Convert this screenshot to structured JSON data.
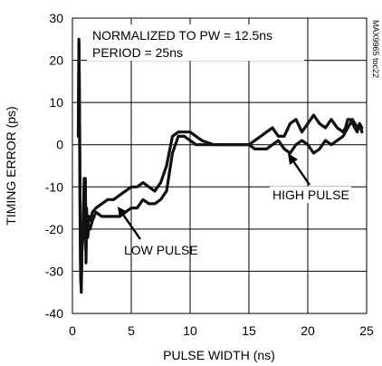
{
  "chart_data": {
    "type": "line",
    "xlabel": "PULSE WIDTH (ns)",
    "ylabel": "TIMING ERROR (ps)",
    "xlim": [
      0,
      25
    ],
    "ylim": [
      -40,
      30
    ],
    "xticks": [
      0,
      5,
      10,
      15,
      20,
      25
    ],
    "yticks": [
      -40,
      -30,
      -20,
      -10,
      0,
      10,
      20,
      30
    ],
    "grid": true,
    "side_label": "MAX9965 toc22",
    "annotations": [
      {
        "text": "NORMALIZED TO PW = 12.5ns"
      },
      {
        "text": "PERIOD = 25ns"
      },
      {
        "text": "HIGH PULSE"
      },
      {
        "text": "LOW PULSE"
      }
    ],
    "series": [
      {
        "name": "HIGH PULSE",
        "x": [
          0.5,
          0.55,
          0.6,
          0.65,
          0.7,
          0.75,
          0.8,
          0.9,
          1.0,
          1.05,
          1.1,
          1.15,
          1.2,
          1.3,
          1.4,
          1.5,
          1.6,
          1.7,
          2.0,
          2.5,
          3.0,
          3.5,
          4.0,
          4.5,
          5.0,
          5.5,
          6.0,
          6.5,
          7.0,
          7.5,
          8.0,
          8.5,
          9.0,
          9.5,
          10.0,
          10.5,
          11.0,
          12.0,
          13.0,
          14.0,
          15.0,
          15.5,
          16.0,
          16.5,
          17.0,
          17.5,
          18.0,
          18.5,
          19.0,
          19.5,
          20.0,
          20.5,
          21.0,
          21.5,
          22.0,
          22.5,
          23.0,
          23.2,
          23.4,
          23.6,
          23.8,
          24.0,
          24.2,
          24.4,
          24.6
        ],
        "y": [
          2,
          25,
          10,
          -15,
          -30,
          -35,
          -25,
          -22,
          -10,
          -20,
          -8,
          -25,
          -15,
          -20,
          -17,
          -18,
          -17,
          -16,
          -15,
          -14,
          -13,
          -13,
          -12,
          -11,
          -10,
          -10,
          -9,
          -10,
          -11,
          -9,
          -5,
          2,
          3,
          3,
          3,
          2,
          1,
          0,
          0,
          0,
          0,
          -1,
          -1,
          -1,
          0,
          1,
          -1,
          -2,
          0,
          1,
          0,
          -2,
          -1,
          1,
          0,
          1,
          2,
          3,
          4,
          5,
          6,
          5,
          4,
          5,
          4
        ]
      },
      {
        "name": "LOW PULSE",
        "x": [
          0.5,
          0.55,
          0.6,
          0.65,
          0.7,
          0.75,
          0.8,
          0.9,
          1.0,
          1.05,
          1.1,
          1.15,
          1.2,
          1.3,
          1.4,
          1.5,
          1.6,
          1.7,
          2.0,
          2.5,
          3.0,
          3.5,
          4.0,
          4.5,
          5.0,
          5.5,
          6.0,
          6.5,
          7.0,
          7.5,
          8.0,
          8.5,
          9.0,
          9.5,
          10.0,
          10.5,
          11.0,
          12.0,
          13.0,
          14.0,
          15.0,
          15.5,
          16.0,
          16.5,
          17.0,
          17.5,
          18.0,
          18.5,
          19.0,
          19.5,
          20.0,
          20.5,
          21.0,
          21.5,
          22.0,
          22.5,
          23.0,
          23.2,
          23.4,
          23.6,
          23.8,
          24.0,
          24.2,
          24.4,
          24.6
        ],
        "y": [
          2,
          24,
          8,
          -18,
          -32,
          -34,
          -26,
          -20,
          -8,
          -22,
          -10,
          -28,
          -18,
          -22,
          -19,
          -20,
          -19,
          -18,
          -16,
          -17,
          -17,
          -17,
          -17,
          -16,
          -15,
          -15,
          -13,
          -14,
          -14,
          -13,
          -11,
          -2,
          2,
          2,
          1,
          0,
          0,
          0,
          0,
          0,
          0,
          1,
          2,
          3,
          4,
          2,
          2,
          5,
          6,
          3,
          5,
          7,
          5,
          4,
          6,
          4,
          3,
          4,
          6,
          6,
          5,
          4,
          3,
          5,
          3
        ]
      }
    ]
  }
}
